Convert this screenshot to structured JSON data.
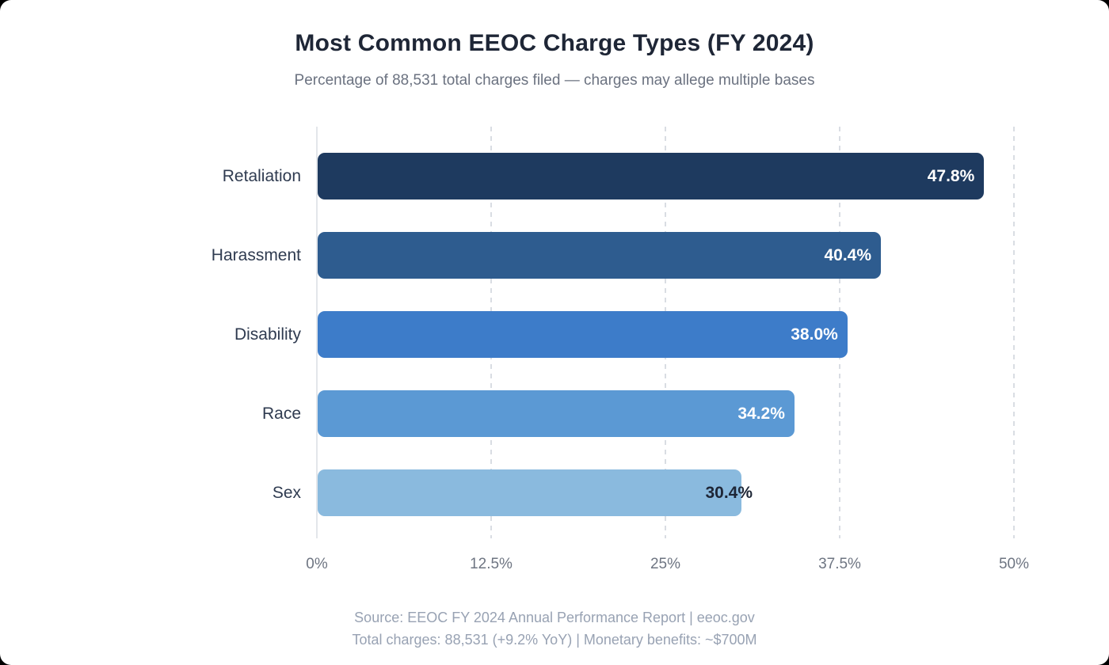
{
  "chart_data": {
    "type": "bar",
    "orientation": "horizontal",
    "title": "Most Common EEOC Charge Types (FY 2024)",
    "subtitle": "Percentage of 88,531 total charges filed — charges may allege multiple bases",
    "categories": [
      "Retaliation",
      "Harassment",
      "Disability",
      "Race",
      "Sex"
    ],
    "values": [
      47.8,
      40.4,
      38.0,
      34.2,
      30.4
    ],
    "value_labels": [
      "47.8%",
      "40.4%",
      "38.0%",
      "34.2%",
      "30.4%"
    ],
    "bar_colors": [
      "#1e3a5f",
      "#2e5c8f",
      "#3d7cc9",
      "#5b99d4",
      "#8abade"
    ],
    "value_label_colors": [
      "#ffffff",
      "#ffffff",
      "#ffffff",
      "#ffffff",
      "#1e2636"
    ],
    "value_label_position": [
      "inside",
      "inside",
      "inside",
      "inside",
      "overflow"
    ],
    "xlim": [
      0,
      50
    ],
    "x_ticks": [
      "0%",
      "12.5%",
      "25%",
      "37.5%",
      "50%"
    ],
    "x_tick_values": [
      0,
      12.5,
      25,
      37.5,
      50
    ],
    "grid": "vertical-dashed",
    "legend": "none",
    "background_color": "#ffffff"
  },
  "footer": {
    "line1": "Source: EEOC FY 2024 Annual Performance Report | eeoc.gov",
    "line2": "Total charges: 88,531 (+9.2% YoY) | Monetary benefits: ~$700M"
  }
}
